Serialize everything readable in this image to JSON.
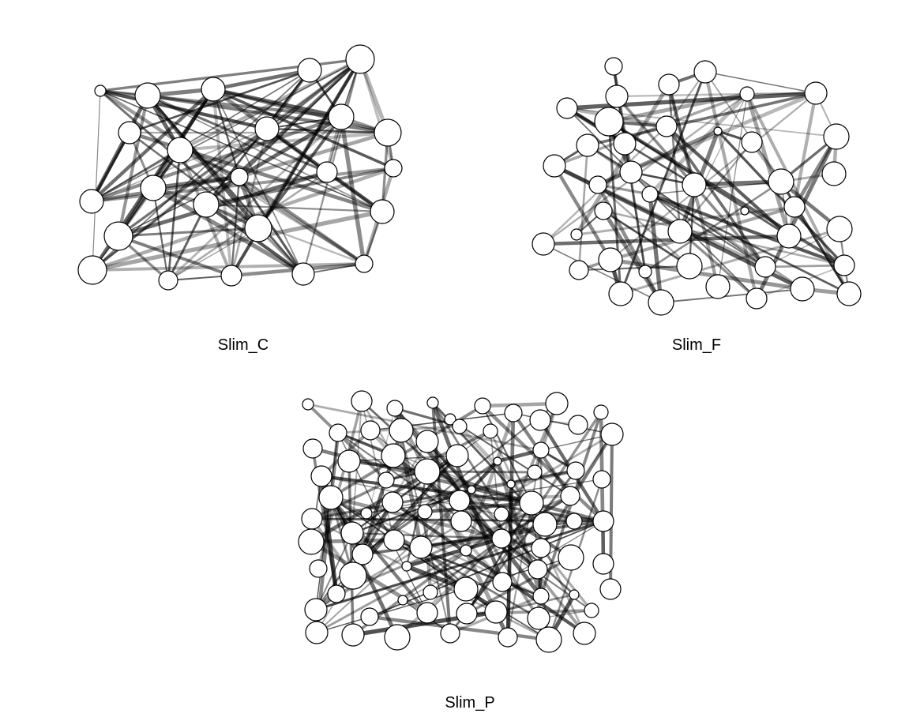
{
  "colors": {
    "node_fill": "#ffffff",
    "node_stroke": "#000000",
    "edge": "#000000"
  },
  "networks": [
    {
      "id": "c",
      "label": "Slim_C"
    },
    {
      "id": "f",
      "label": "Slim_F"
    },
    {
      "id": "p",
      "label": "Slim_P"
    }
  ]
}
